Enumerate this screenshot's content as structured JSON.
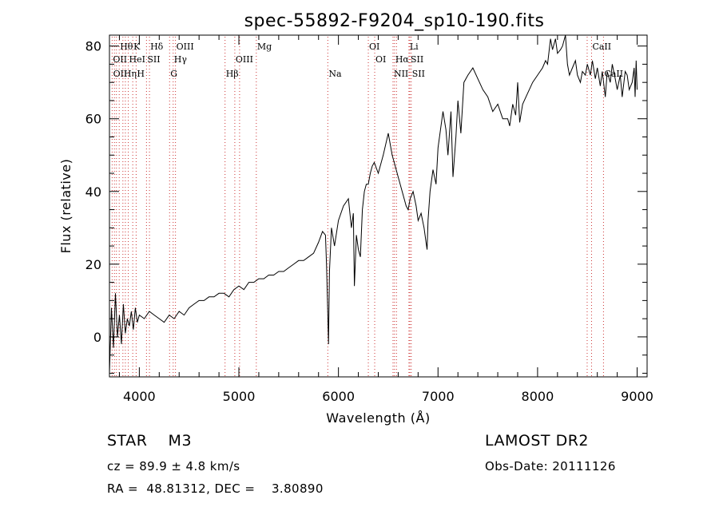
{
  "chart_data": {
    "type": "line",
    "title": "spec-55892-F9204_sp10-190.fits",
    "xlabel": "Wavelength (Å)",
    "ylabel": "Flux (relative)",
    "xlim": [
      3700,
      9100
    ],
    "ylim": [
      -11,
      83
    ],
    "xticks": [
      4000,
      5000,
      6000,
      7000,
      8000,
      9000
    ],
    "yticks": [
      0,
      20,
      40,
      60,
      80
    ],
    "grid": false,
    "line_color": "#000000",
    "marker_color": "#cc3333",
    "series": [
      {
        "x": [
          3700,
          3720,
          3740,
          3760,
          3780,
          3800,
          3820,
          3840,
          3860,
          3880,
          3900,
          3920,
          3940,
          3960,
          3980,
          4000,
          4050,
          4100,
          4150,
          4200,
          4250,
          4300,
          4350,
          4400,
          4450,
          4500,
          4550,
          4600,
          4650,
          4700,
          4750,
          4800,
          4850,
          4900,
          4950,
          5000,
          5050,
          5100,
          5150,
          5200,
          5250,
          5300,
          5350,
          5400,
          5450,
          5500,
          5550,
          5600,
          5650,
          5700,
          5750,
          5800,
          5840,
          5870,
          5880,
          5890,
          5900,
          5910,
          5930,
          5960,
          6000,
          6050,
          6100,
          6130,
          6150,
          6160,
          6180,
          6200,
          6220,
          6240,
          6260,
          6280,
          6300,
          6320,
          6340,
          6360,
          6400,
          6450,
          6500,
          6540,
          6570,
          6600,
          6640,
          6680,
          6700,
          6720,
          6750,
          6780,
          6800,
          6830,
          6860,
          6880,
          6890,
          6900,
          6920,
          6950,
          6980,
          7000,
          7050,
          7080,
          7100,
          7130,
          7150,
          7180,
          7200,
          7230,
          7260,
          7300,
          7350,
          7400,
          7450,
          7500,
          7550,
          7600,
          7650,
          7700,
          7720,
          7750,
          7780,
          7800,
          7820,
          7850,
          7900,
          7950,
          8000,
          8050,
          8080,
          8100,
          8130,
          8150,
          8180,
          8200,
          8230,
          8250,
          8280,
          8300,
          8320,
          8350,
          8380,
          8400,
          8430,
          8450,
          8480,
          8500,
          8530,
          8550,
          8580,
          8600,
          8630,
          8650,
          8680,
          8700,
          8730,
          8750,
          8780,
          8800,
          8830,
          8850,
          8880,
          8900,
          8920,
          8950,
          8970,
          8980,
          8990,
          9000
        ],
        "y": [
          -10,
          8,
          -3,
          12,
          0,
          6,
          -2,
          9,
          1,
          5,
          3,
          7,
          2,
          8,
          4,
          6,
          5,
          7,
          6,
          5,
          4,
          6,
          5,
          7,
          6,
          8,
          9,
          10,
          10,
          11,
          11,
          12,
          12,
          11,
          13,
          14,
          13,
          15,
          15,
          16,
          16,
          17,
          17,
          18,
          18,
          19,
          20,
          21,
          21,
          22,
          23,
          26,
          29,
          28,
          20,
          10,
          -2,
          18,
          30,
          25,
          32,
          36,
          38,
          30,
          34,
          14,
          28,
          24,
          22,
          35,
          40,
          42,
          42,
          45,
          47,
          48,
          45,
          50,
          56,
          50,
          47,
          44,
          40,
          36,
          35,
          38,
          40,
          36,
          32,
          34,
          30,
          26,
          24,
          32,
          40,
          46,
          42,
          52,
          62,
          57,
          50,
          62,
          44,
          55,
          65,
          56,
          70,
          72,
          74,
          71,
          68,
          66,
          62,
          64,
          60,
          60,
          58,
          64,
          61,
          70,
          59,
          64,
          67,
          70,
          72,
          74,
          76,
          75,
          82,
          79,
          82,
          78,
          79,
          80,
          83,
          75,
          72,
          74,
          76,
          72,
          70,
          73,
          72,
          75,
          72,
          76,
          71,
          74,
          69,
          73,
          66,
          73,
          70,
          75,
          71,
          68,
          72,
          66,
          73,
          72,
          68,
          70,
          74,
          66,
          76,
          68
        ]
      }
    ],
    "lines": [
      {
        "name": "Hθ",
        "wave": 3798,
        "row": 1
      },
      {
        "name": "K",
        "wave": 3934,
        "row": 1
      },
      {
        "name": "Hδ",
        "wave": 4102,
        "row": 1
      },
      {
        "name": "OIII",
        "wave": 4363,
        "row": 1
      },
      {
        "name": "Mg",
        "wave": 5175,
        "row": 1
      },
      {
        "name": "OI",
        "wave": 6300,
        "row": 1
      },
      {
        "name": "Li",
        "wave": 6708,
        "row": 1
      },
      {
        "name": "CaII",
        "wave": 8542,
        "row": 1
      },
      {
        "name": "OII",
        "wave": 3727,
        "row": 2
      },
      {
        "name": "HeI",
        "wave": 3889,
        "row": 2
      },
      {
        "name": "SII",
        "wave": 4072,
        "row": 2
      },
      {
        "name": "Hγ",
        "wave": 4340,
        "row": 2
      },
      {
        "name": "OIII",
        "wave": 4959,
        "row": 2
      },
      {
        "name": "OI",
        "wave": 6364,
        "row": 2
      },
      {
        "name": "Hα",
        "wave": 6563,
        "row": 2
      },
      {
        "name": "SII",
        "wave": 6717,
        "row": 2
      },
      {
        "name": "OII",
        "wave": 3729,
        "row": 3
      },
      {
        "name": "Hη",
        "wave": 3835,
        "row": 3
      },
      {
        "name": "H",
        "wave": 3968,
        "row": 3
      },
      {
        "name": "G",
        "wave": 4304,
        "row": 3
      },
      {
        "name": "Hβ",
        "wave": 4861,
        "row": 3
      },
      {
        "name": "Na",
        "wave": 5893,
        "row": 3
      },
      {
        "name": "NII",
        "wave": 6548,
        "row": 3
      },
      {
        "name": "SII",
        "wave": 6731,
        "row": 3
      },
      {
        "name": "CaII",
        "wave": 8662,
        "row": 3
      }
    ],
    "marker_waves": [
      3727,
      3750,
      3770,
      3798,
      3835,
      3860,
      3889,
      3934,
      3968,
      4072,
      4102,
      4304,
      4340,
      4363,
      4861,
      4959,
      5007,
      5175,
      5893,
      6300,
      6364,
      6548,
      6563,
      6583,
      6708,
      6717,
      6731,
      8498,
      8542,
      8662
    ]
  },
  "info": {
    "class_text": "STAR    M3",
    "cz_text": "cz = 89.9 ± 4.8 km/s",
    "coord_text": "RA =  48.81312, DEC =    3.80890",
    "survey_text": "LAMOST DR2",
    "obs_text": "Obs-Date: 20111126"
  }
}
